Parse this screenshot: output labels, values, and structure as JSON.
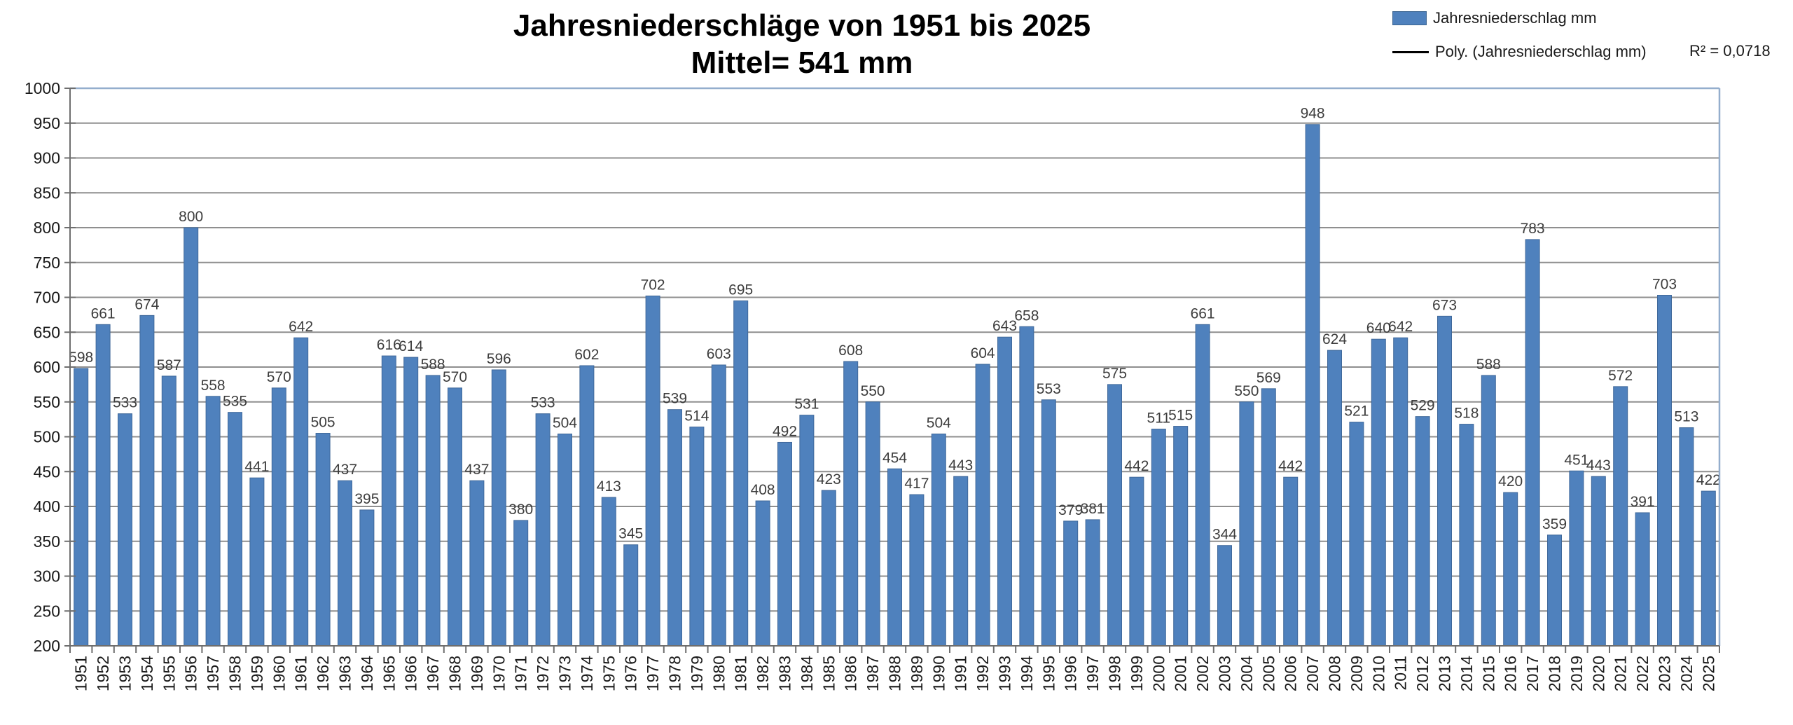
{
  "chart_data": {
    "type": "bar",
    "title_line1": "Jahresniederschläge von 1951 bis 2025",
    "title_line2": "Mittel= 541 mm",
    "series_name": "Jahresniederschlag mm",
    "trend": {
      "type": "polynomial",
      "degree": 3,
      "label": "Poly. (Jahresniederschlag mm)",
      "r2_label": "R² = 0,0718"
    },
    "categories": [
      1951,
      1952,
      1953,
      1954,
      1955,
      1956,
      1957,
      1958,
      1959,
      1960,
      1961,
      1962,
      1963,
      1964,
      1965,
      1966,
      1967,
      1968,
      1969,
      1970,
      1971,
      1972,
      1973,
      1974,
      1975,
      1976,
      1977,
      1978,
      1979,
      1980,
      1981,
      1982,
      1983,
      1984,
      1985,
      1986,
      1987,
      1988,
      1989,
      1990,
      1991,
      1992,
      1993,
      1994,
      1995,
      1996,
      1997,
      1998,
      1999,
      2000,
      2001,
      2002,
      2003,
      2004,
      2005,
      2006,
      2007,
      2008,
      2009,
      2010,
      2011,
      2012,
      2013,
      2014,
      2015,
      2016,
      2017,
      2018,
      2019,
      2020,
      2021,
      2022,
      2023,
      2024,
      2025
    ],
    "values": [
      598,
      661,
      533,
      674,
      587,
      800,
      558,
      535,
      441,
      570,
      642,
      505,
      437,
      395,
      616,
      614,
      588,
      570,
      437,
      596,
      380,
      533,
      504,
      602,
      413,
      345,
      702,
      539,
      514,
      603,
      695,
      408,
      492,
      531,
      423,
      608,
      550,
      454,
      417,
      504,
      443,
      604,
      643,
      658,
      553,
      379,
      381,
      575,
      442,
      511,
      515,
      661,
      344,
      550,
      569,
      442,
      948,
      624,
      521,
      640,
      642,
      529,
      673,
      518,
      588,
      420,
      783,
      359,
      451,
      443,
      572,
      391,
      703,
      513,
      422
    ],
    "ylim": [
      200,
      1000
    ],
    "yticks": [
      200,
      250,
      300,
      350,
      400,
      450,
      500,
      550,
      600,
      650,
      700,
      750,
      800,
      850,
      900,
      950,
      1000
    ],
    "grid": true,
    "legend_position": "top-right",
    "bar_labels_shown": true,
    "colors": {
      "bar": "#4f81bd",
      "bar_border": "#3f689a",
      "trend": "#000000",
      "gridline": "#8f8f8f",
      "axis": "#6e6e6e",
      "plot_border": "#94aecd",
      "value_label": "#3d3d3d",
      "tick_label": "#1a1a1a"
    }
  }
}
